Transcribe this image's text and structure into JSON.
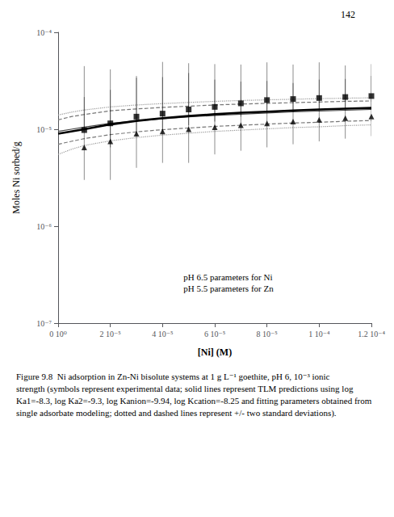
{
  "chart_data": {
    "type": "line",
    "xlabel": "[Ni] (M)",
    "ylabel": "Moles Ni sorbed/g",
    "annotations": [
      "142",
      "pH 6.5 parameters for Ni\npH 5.5 parameters for Zn",
      "Figure 9.8  Ni adsorption in Zn-Ni bisolute systems at 1 g L⁻¹ goethite, pH 6, 10⁻³ ionic strength (symbols represent experimental data; solid lines represent TLM predictions using log Ka1=-8.3, log Ka2=-9.3, log Kanion=-9.94, log Kcation=-8.25 and fitting parameters obtained from single adsorbate modeling; dotted and dashed lines represent +/- two standard deviations)."
    ],
    "log": "y",
    "grid": false,
    "xlim": [
      0,
      0.00012
    ],
    "ylim": [
      1e-07,
      0.0001
    ],
    "xticks": [
      {
        "value": 0,
        "label": "0 10⁰"
      },
      {
        "value": 2e-05,
        "label": "2 10⁻⁵"
      },
      {
        "value": 4e-05,
        "label": "4 10⁻⁵"
      },
      {
        "value": 6e-05,
        "label": "6 10⁻⁵"
      },
      {
        "value": 8e-05,
        "label": "8 10⁻⁵"
      },
      {
        "value": 0.0001,
        "label": "1 10⁻⁴"
      },
      {
        "value": 0.00012,
        "label": "1.2 10⁻⁴"
      }
    ],
    "yticks": [
      {
        "value": 1e-07,
        "label": "10⁻⁷"
      },
      {
        "value": 1e-06,
        "label": "10⁻⁶"
      },
      {
        "value": 1e-05,
        "label": "10⁻⁵"
      },
      {
        "value": 0.0001,
        "label": "10⁻⁴"
      }
    ],
    "series": [
      {
        "type": "line",
        "line_style": "dotted",
        "color": "#999999",
        "x": [
          0,
          5e-06,
          1e-05,
          2e-05,
          3e-05,
          4e-05,
          5e-05,
          6e-05,
          7e-05,
          8e-05,
          9e-05,
          0.0001,
          0.00011,
          0.00012
        ],
        "values": [
          1.4e-05,
          1.5e-05,
          1.58e-05,
          1.7e-05,
          1.78e-05,
          1.84e-05,
          1.89e-05,
          1.94e-05,
          1.98e-05,
          2.01e-05,
          2.04e-05,
          2.07e-05,
          2.09e-05,
          2.11e-05
        ]
      },
      {
        "type": "line",
        "line_style": "dotted",
        "color": "#999999",
        "x": [
          0,
          5e-06,
          1e-05,
          2e-05,
          3e-05,
          4e-05,
          5e-05,
          6e-05,
          7e-05,
          8e-05,
          9e-05,
          0.0001,
          0.00011,
          0.00012
        ],
        "values": [
          5.5e-06,
          6.2e-06,
          6.8e-06,
          7.6e-06,
          8.2e-06,
          8.7e-06,
          9.1e-06,
          9.5e-06,
          9.8e-06,
          1.01e-05,
          1.04e-05,
          1.06e-05,
          1.09e-05,
          1.11e-05
        ]
      },
      {
        "type": "line",
        "line_style": "dashed",
        "color": "#777777",
        "x": [
          0,
          5e-06,
          1e-05,
          2e-05,
          3e-05,
          4e-05,
          5e-05,
          6e-05,
          7e-05,
          8e-05,
          9e-05,
          0.0001,
          0.00011,
          0.00012
        ],
        "values": [
          1.25e-05,
          1.35e-05,
          1.42e-05,
          1.55e-05,
          1.62e-05,
          1.68e-05,
          1.73e-05,
          1.78e-05,
          1.82e-05,
          1.85e-05,
          1.88e-05,
          1.91e-05,
          1.94e-05,
          1.96e-05
        ]
      },
      {
        "type": "line",
        "line_style": "dashed",
        "color": "#777777",
        "x": [
          0,
          5e-06,
          1e-05,
          2e-05,
          3e-05,
          4e-05,
          5e-05,
          6e-05,
          7e-05,
          8e-05,
          9e-05,
          0.0001,
          0.00011,
          0.00012
        ],
        "values": [
          7e-06,
          7.5e-06,
          8e-06,
          8.8e-06,
          9.4e-06,
          9.9e-06,
          1.03e-05,
          1.07e-05,
          1.1e-05,
          1.13e-05,
          1.16e-05,
          1.18e-05,
          1.21e-05,
          1.23e-05
        ]
      },
      {
        "type": "line",
        "line_style": "solid",
        "color": "#444444",
        "x": [
          0,
          5e-06,
          1e-05,
          2e-05,
          3e-05,
          4e-05,
          5e-05,
          6e-05,
          7e-05,
          8e-05,
          9e-05,
          0.0001,
          0.00011,
          0.00012
        ],
        "values": [
          9.5e-06,
          1e-05,
          1.05e-05,
          1.15e-05,
          1.22e-05,
          1.28e-05,
          1.34e-05,
          1.39e-05,
          1.43e-05,
          1.47e-05,
          1.51e-05,
          1.54e-05,
          1.57e-05,
          1.6e-05
        ]
      },
      {
        "type": "line",
        "line_style": "thick",
        "color": "#000000",
        "x": [
          0,
          5e-06,
          1e-05,
          2e-05,
          3e-05,
          4e-05,
          5e-05,
          6e-05,
          7e-05,
          8e-05,
          9e-05,
          0.0001,
          0.00011,
          0.00012
        ],
        "values": [
          9e-06,
          9.5e-06,
          1e-05,
          1.12e-05,
          1.22e-05,
          1.3e-05,
          1.37e-05,
          1.43e-05,
          1.48e-05,
          1.52e-05,
          1.56e-05,
          1.6e-05,
          1.63e-05,
          1.66e-05
        ]
      },
      {
        "type": "scatter",
        "marker": "square",
        "color": "#000000",
        "x": [
          1e-05,
          2e-05,
          3e-05,
          4e-05,
          5e-05,
          6e-05,
          7e-05,
          8e-05,
          9e-05,
          0.0001,
          0.00011,
          0.00012
        ],
        "values": [
          9.8e-06,
          1.15e-05,
          1.35e-05,
          1.45e-05,
          1.6e-05,
          1.7e-05,
          1.85e-05,
          2e-05,
          2.05e-05,
          2.1e-05,
          2.15e-05,
          2.2e-05
        ],
        "error_plus": [
          3.5e-05,
          3e-05,
          2.2e-05,
          3.5e-05,
          3.2e-05,
          3e-05,
          2.8e-05,
          2.9e-05,
          2.6e-05,
          2.8e-05,
          2.4e-05,
          2.5e-05
        ],
        "error_minus": [
          0,
          5e-06,
          5e-06,
          5e-06,
          5e-06,
          5e-06,
          5e-06,
          5e-06,
          5e-06,
          5e-06,
          5e-06,
          5e-06
        ]
      },
      {
        "type": "scatter",
        "marker": "triangle",
        "color": "#000000",
        "x": [
          1e-05,
          2e-05,
          3e-05,
          4e-05,
          5e-05,
          6e-05,
          7e-05,
          8e-05,
          9e-05,
          0.0001,
          0.00011,
          0.00012
        ],
        "values": [
          6.5e-06,
          7.5e-06,
          9e-06,
          9.5e-06,
          1e-05,
          1.05e-05,
          1.1e-05,
          1.15e-05,
          1.2e-05,
          1.25e-05,
          1.3e-05,
          1.35e-05
        ],
        "error_plus": [
          1.5e-05,
          1.8e-05,
          2.5e-05,
          2.5e-05,
          2.8e-05,
          2.2e-05,
          2e-05,
          2e-05,
          1.8e-05,
          2e-05,
          2e-05,
          2.2e-05
        ],
        "error_minus": [
          3.5e-06,
          4.5e-06,
          5e-06,
          5e-06,
          5.5e-06,
          5e-06,
          5e-06,
          5e-06,
          5e-06,
          5e-06,
          5e-06,
          5e-06
        ]
      }
    ]
  }
}
